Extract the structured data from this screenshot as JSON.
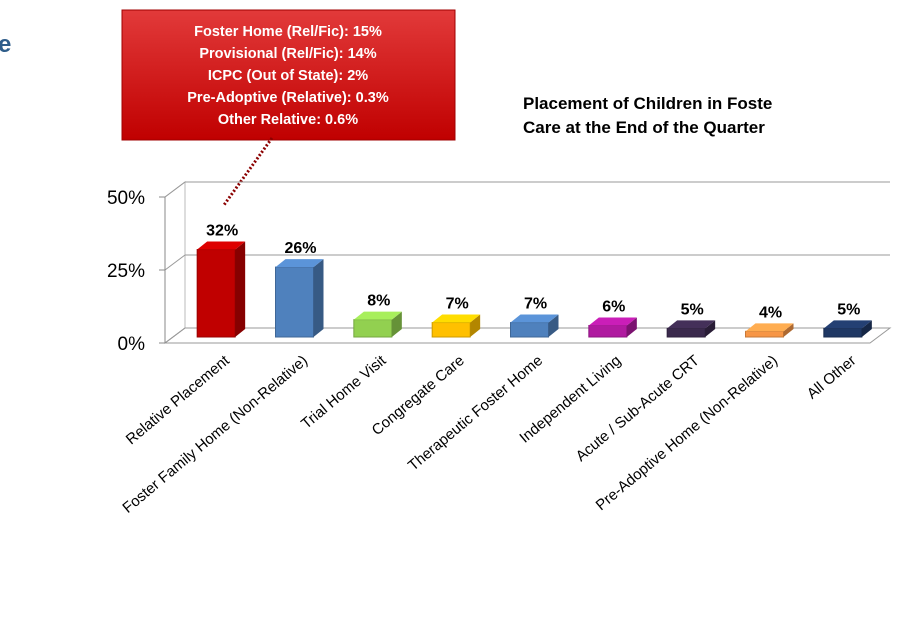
{
  "heading": "e",
  "chart_data": {
    "type": "bar3d",
    "title_lines": [
      "Placement of Children in Foste",
      "Care at the End of the Quarter"
    ],
    "annotations": [
      "Foster Home (Rel/Fic):  15%",
      "Provisional (Rel/Fic):  14%",
      "ICPC (Out of State):  2%",
      "Pre-Adoptive (Relative):  0.3%",
      "Other Relative:  0.6%"
    ],
    "categories": [
      "Relative Placement",
      "Foster Family Home (Non-Relative)",
      "Trial Home Visit",
      "Congregate Care",
      "Therapeutic Foster Home",
      "Independent Living",
      "Acute / Sub-Acute CRT",
      "Pre-Adoptive Home (Non-Relative)",
      "All Other"
    ],
    "values": [
      32,
      26,
      8,
      7,
      7,
      6,
      5,
      4,
      5
    ],
    "value_labels": [
      "32%",
      "26%",
      "8%",
      "7%",
      "7%",
      "6%",
      "5%",
      "4%",
      "5%"
    ],
    "colors": [
      "#c00000",
      "#4f81bd",
      "#92d050",
      "#ffc000",
      "#4f81bd",
      "#b01aa0",
      "#3b2a4d",
      "#f79646",
      "#1f3864"
    ],
    "ylim": [
      0,
      50
    ],
    "yticks": [
      {
        "value": 0,
        "label": "0%"
      },
      {
        "value": 25,
        "label": "25%"
      },
      {
        "value": 50,
        "label": "50%"
      }
    ],
    "grid": true
  }
}
